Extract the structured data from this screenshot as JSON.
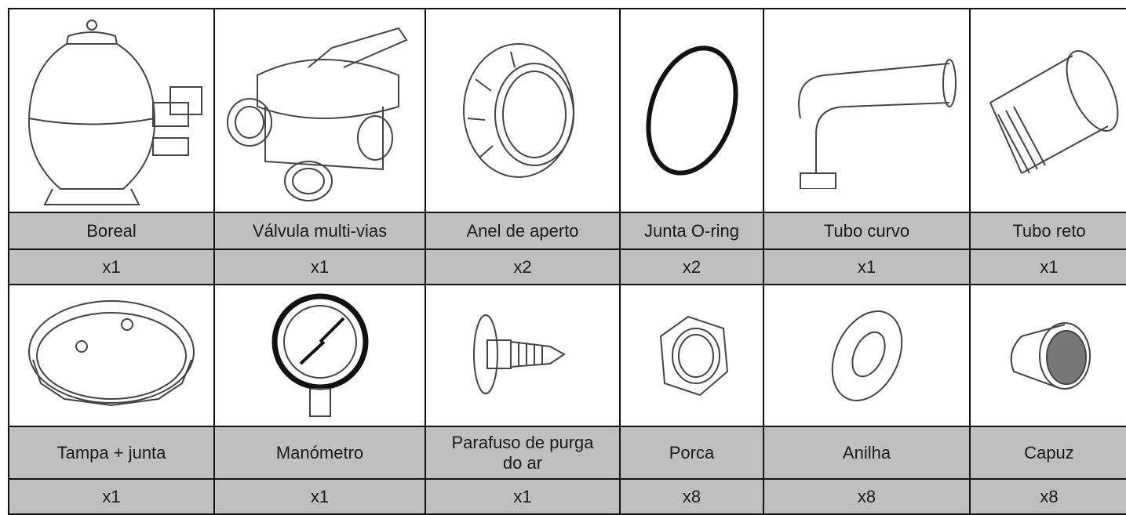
{
  "rows": [
    {
      "items": [
        {
          "name": "Boreal",
          "quantity": "x1"
        },
        {
          "name": "Válvula multi-vias",
          "quantity": "x1"
        },
        {
          "name": "Anel de aperto",
          "quantity": "x2"
        },
        {
          "name": "Junta O-ring",
          "quantity": "x2"
        },
        {
          "name": "Tubo curvo",
          "quantity": "x1"
        },
        {
          "name": "Tubo reto",
          "quantity": "x1"
        }
      ]
    },
    {
      "items": [
        {
          "name": "Tampa + junta",
          "quantity": "x1"
        },
        {
          "name": "Manómetro",
          "quantity": "x1"
        },
        {
          "name": "Parafuso de purga do ar",
          "quantity": "x1"
        },
        {
          "name": "Porca",
          "quantity": "x8"
        },
        {
          "name": "Anilha",
          "quantity": "x8"
        },
        {
          "name": "Capuz",
          "quantity": "x8"
        }
      ]
    }
  ]
}
